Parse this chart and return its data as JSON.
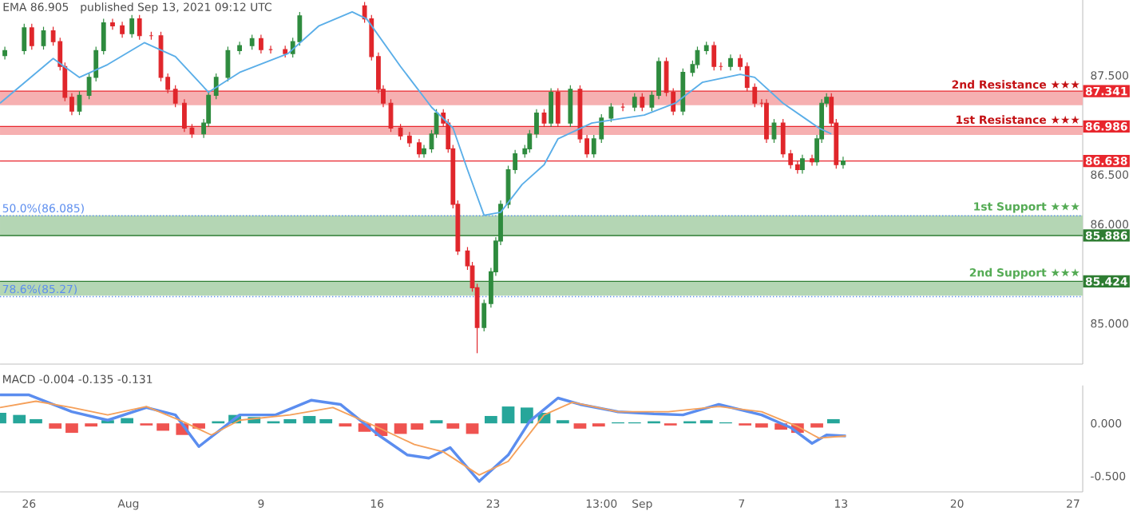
{
  "chart_data": [
    {
      "type": "candlestick",
      "annotations": [
        "EMA 86.905",
        "published Sep 13, 2021 09:12 UTC"
      ],
      "x": [
        "2021-07-24T13:00",
        "2021-07-25T17:00",
        "2021-07-26T04:00",
        "2021-07-26T21:00",
        "2021-07-27T11:00",
        "2021-07-27T21:00",
        "2021-07-28T04:00",
        "2021-07-28T14:00",
        "2021-07-29T01:00",
        "2021-07-29T15:00",
        "2021-07-30T01:00",
        "2021-07-30T12:00",
        "2021-07-31T01:00",
        "2021-07-31T15:00",
        "2021-08-01T05:00",
        "2021-08-01T16:00",
        "2021-08-02T09:00",
        "2021-08-02T23:00",
        "2021-08-03T09:00",
        "2021-08-03T20:00",
        "2021-08-04T09:00",
        "2021-08-04T20:00",
        "2021-08-05T13:00",
        "2021-08-05T20:00",
        "2021-08-06T07:00",
        "2021-08-07T00:00",
        "2021-08-07T17:00",
        "2021-08-08T11:00",
        "2021-08-09T00:00",
        "2021-08-09T14:00",
        "2021-08-10T11:00",
        "2021-08-10T22:00",
        "2021-08-11T08:00",
        "2021-08-15T06:00",
        "2021-08-15T16:00",
        "2021-08-16T02:00",
        "2021-08-16T09:00",
        "2021-08-16T20:00",
        "2021-08-17T10:00",
        "2021-08-17T23:00",
        "2021-08-18T13:00",
        "2021-08-18T20:00",
        "2021-08-19T07:00",
        "2021-08-19T14:00",
        "2021-08-20T00:00",
        "2021-08-20T07:00",
        "2021-08-20T14:00",
        "2021-08-20T21:00",
        "2021-08-21T11:00",
        "2021-08-21T18:00",
        "2021-08-22T01:00",
        "2021-08-22T11:00",
        "2021-08-22T21:00",
        "2021-08-23T04:00",
        "2021-08-23T11:00",
        "2021-08-23T22:00",
        "2021-08-24T08:00",
        "2021-08-24T22:00",
        "2021-08-25T05:00",
        "2021-08-25T15:00",
        "2021-08-26T02:00",
        "2021-08-26T12:00",
        "2021-08-26T22:00",
        "2021-08-27T16:00",
        "2021-08-28T06:00",
        "2021-08-28T16:00",
        "2021-08-29T02:00",
        "2021-08-29T13:00",
        "2021-08-30T03:00",
        "2021-08-30T20:00",
        "2021-08-31T13:00",
        "2021-09-01T00:00",
        "2021-09-01T14:00",
        "2021-09-02T00:00",
        "2021-09-02T11:00",
        "2021-09-02T21:00",
        "2021-09-03T11:00",
        "2021-09-04T01:00",
        "2021-09-04T08:00",
        "2021-09-04T21:00",
        "2021-09-05T08:00",
        "2021-09-05T18:00",
        "2021-09-06T08:00",
        "2021-09-06T22:00",
        "2021-09-07T08:00",
        "2021-09-07T19:00",
        "2021-09-08T05:00",
        "2021-09-08T12:00",
        "2021-09-08T23:00",
        "2021-09-09T12:00",
        "2021-09-09T23:00",
        "2021-09-10T09:00",
        "2021-09-10T16:00",
        "2021-09-11T06:00",
        "2021-09-11T13:00",
        "2021-09-11T20:00",
        "2021-09-12T03:00",
        "2021-09-12T10:00",
        "2021-09-12T17:00",
        "2021-09-13T03:00"
      ],
      "ohlc": [
        [
          87.7,
          87.79,
          87.66,
          87.75
        ],
        [
          87.75,
          88.02,
          87.71,
          87.98
        ],
        [
          87.98,
          88.02,
          87.76,
          87.8
        ],
        [
          87.8,
          87.99,
          87.76,
          87.95
        ],
        [
          87.95,
          87.99,
          87.8,
          87.84
        ],
        [
          87.84,
          87.88,
          87.55,
          87.59
        ],
        [
          87.59,
          87.63,
          87.24,
          87.28
        ],
        [
          87.28,
          87.32,
          87.1,
          87.14
        ],
        [
          87.14,
          87.34,
          87.1,
          87.3
        ],
        [
          87.3,
          87.52,
          87.26,
          87.48
        ],
        [
          87.48,
          87.79,
          87.44,
          87.75
        ],
        [
          87.75,
          88.07,
          87.71,
          88.03
        ],
        [
          88.03,
          88.07,
          87.96,
          88.0
        ],
        [
          88.0,
          88.04,
          87.88,
          87.92
        ],
        [
          87.92,
          88.11,
          87.88,
          88.07
        ],
        [
          88.07,
          88.11,
          87.86,
          87.9
        ],
        [
          87.9,
          87.94,
          87.86,
          87.9
        ],
        [
          87.9,
          87.94,
          87.44,
          87.48
        ],
        [
          87.48,
          87.52,
          87.32,
          87.36
        ],
        [
          87.36,
          87.4,
          87.18,
          87.22
        ],
        [
          87.22,
          87.26,
          86.93,
          86.97
        ],
        [
          86.97,
          87.01,
          86.87,
          86.91
        ],
        [
          86.91,
          87.06,
          86.87,
          87.02
        ],
        [
          87.02,
          87.34,
          86.98,
          87.3
        ],
        [
          87.3,
          87.52,
          87.26,
          87.48
        ],
        [
          87.48,
          87.79,
          87.44,
          87.75
        ],
        [
          87.75,
          87.84,
          87.71,
          87.8
        ],
        [
          87.8,
          87.91,
          87.76,
          87.87
        ],
        [
          87.87,
          87.91,
          87.72,
          87.76
        ],
        [
          87.76,
          87.8,
          87.72,
          87.76
        ],
        [
          87.76,
          87.8,
          87.68,
          87.72
        ],
        [
          87.72,
          87.88,
          87.68,
          87.84
        ],
        [
          87.84,
          88.14,
          87.8,
          88.1
        ],
        [
          88.2,
          88.24,
          88.03,
          88.07
        ],
        [
          88.07,
          88.11,
          87.65,
          87.69
        ],
        [
          87.69,
          87.73,
          87.32,
          87.36
        ],
        [
          87.36,
          87.4,
          87.18,
          87.22
        ],
        [
          87.22,
          87.26,
          86.93,
          86.97
        ],
        [
          86.97,
          87.01,
          86.85,
          86.89
        ],
        [
          86.89,
          86.93,
          86.78,
          86.82
        ],
        [
          86.82,
          86.86,
          86.67,
          86.71
        ],
        [
          86.71,
          86.8,
          86.67,
          86.76
        ],
        [
          86.76,
          86.95,
          86.72,
          86.91
        ],
        [
          86.91,
          87.16,
          86.87,
          87.12
        ],
        [
          87.12,
          87.16,
          86.98,
          87.02
        ],
        [
          87.02,
          87.06,
          86.72,
          86.76
        ],
        [
          86.76,
          86.8,
          86.16,
          86.2
        ],
        [
          86.2,
          86.24,
          85.69,
          85.73
        ],
        [
          85.73,
          85.77,
          85.54,
          85.58
        ],
        [
          85.58,
          85.62,
          85.32,
          85.36
        ],
        [
          85.36,
          85.4,
          84.7,
          84.96
        ],
        [
          84.96,
          85.24,
          84.92,
          85.2
        ],
        [
          85.2,
          85.56,
          85.16,
          85.52
        ],
        [
          85.52,
          85.87,
          85.48,
          85.83
        ],
        [
          85.83,
          86.24,
          85.79,
          86.2
        ],
        [
          86.2,
          86.59,
          86.16,
          86.55
        ],
        [
          86.55,
          86.75,
          86.51,
          86.71
        ],
        [
          86.71,
          86.8,
          86.67,
          86.76
        ],
        [
          86.76,
          86.95,
          86.72,
          86.91
        ],
        [
          86.91,
          87.16,
          86.87,
          87.12
        ],
        [
          87.12,
          87.16,
          86.98,
          87.02
        ],
        [
          87.02,
          87.37,
          86.98,
          87.33
        ],
        [
          87.33,
          87.37,
          86.98,
          87.02
        ],
        [
          87.02,
          87.4,
          86.98,
          87.36
        ],
        [
          87.36,
          87.4,
          86.82,
          86.86
        ],
        [
          86.86,
          86.9,
          86.67,
          86.71
        ],
        [
          86.71,
          86.9,
          86.67,
          86.86
        ],
        [
          86.86,
          87.11,
          86.82,
          87.07
        ],
        [
          87.07,
          87.22,
          87.03,
          87.18
        ],
        [
          87.18,
          87.22,
          87.14,
          87.18
        ],
        [
          87.18,
          87.32,
          87.14,
          87.28
        ],
        [
          87.28,
          87.32,
          87.14,
          87.18
        ],
        [
          87.18,
          87.34,
          87.14,
          87.3
        ],
        [
          87.3,
          87.68,
          87.26,
          87.64
        ],
        [
          87.64,
          87.68,
          87.29,
          87.33
        ],
        [
          87.33,
          87.37,
          87.1,
          87.14
        ],
        [
          87.14,
          87.57,
          87.1,
          87.53
        ],
        [
          87.53,
          87.65,
          87.49,
          87.61
        ],
        [
          87.61,
          87.79,
          87.57,
          87.75
        ],
        [
          87.75,
          87.84,
          87.71,
          87.8
        ],
        [
          87.8,
          87.84,
          87.55,
          87.59
        ],
        [
          87.59,
          87.63,
          87.55,
          87.59
        ],
        [
          87.59,
          87.71,
          87.55,
          87.67
        ],
        [
          87.67,
          87.71,
          87.55,
          87.59
        ],
        [
          87.59,
          87.63,
          87.34,
          87.38
        ],
        [
          87.38,
          87.42,
          87.18,
          87.22
        ],
        [
          87.22,
          87.26,
          87.18,
          87.22
        ],
        [
          87.22,
          87.26,
          86.82,
          86.86
        ],
        [
          86.86,
          87.06,
          86.82,
          87.02
        ],
        [
          87.02,
          87.06,
          86.67,
          86.71
        ],
        [
          86.71,
          86.75,
          86.56,
          86.6
        ],
        [
          86.6,
          86.64,
          86.51,
          86.55
        ],
        [
          86.55,
          86.7,
          86.51,
          86.66
        ],
        [
          86.66,
          86.7,
          86.59,
          86.63
        ],
        [
          86.63,
          86.9,
          86.59,
          86.86
        ],
        [
          86.86,
          87.26,
          86.82,
          87.22
        ],
        [
          87.22,
          87.32,
          87.18,
          87.28
        ],
        [
          87.28,
          87.32,
          86.98,
          87.02
        ],
        [
          87.02,
          87.06,
          86.56,
          86.6
        ],
        [
          86.6,
          86.68,
          86.56,
          86.638
        ]
      ],
      "colors": [
        "#2e8b3e",
        "#2e8b3e",
        "#e0262b",
        "#2e8b3e",
        "#e0262b",
        "#e0262b",
        "#e0262b",
        "#e0262b",
        "#2e8b3e",
        "#2e8b3e",
        "#2e8b3e",
        "#2e8b3e",
        "#e0262b",
        "#e0262b",
        "#2e8b3e",
        "#e0262b",
        "#e0262b",
        "#e0262b",
        "#e0262b",
        "#e0262b",
        "#e0262b",
        "#e0262b",
        "#2e8b3e",
        "#2e8b3e",
        "#2e8b3e",
        "#2e8b3e",
        "#2e8b3e",
        "#2e8b3e",
        "#e0262b",
        "#e0262b",
        "#e0262b",
        "#2e8b3e",
        "#2e8b3e",
        "#e0262b",
        "#e0262b",
        "#e0262b",
        "#e0262b",
        "#e0262b",
        "#e0262b",
        "#e0262b",
        "#e0262b",
        "#2e8b3e",
        "#2e8b3e",
        "#2e8b3e",
        "#e0262b",
        "#e0262b",
        "#e0262b",
        "#e0262b",
        "#e0262b",
        "#e0262b",
        "#e0262b",
        "#2e8b3e",
        "#2e8b3e",
        "#2e8b3e",
        "#2e8b3e",
        "#2e8b3e",
        "#2e8b3e",
        "#2e8b3e",
        "#2e8b3e",
        "#2e8b3e",
        "#e0262b",
        "#2e8b3e",
        "#e0262b",
        "#2e8b3e",
        "#e0262b",
        "#e0262b",
        "#2e8b3e",
        "#2e8b3e",
        "#2e8b3e",
        "#e0262b",
        "#2e8b3e",
        "#e0262b",
        "#2e8b3e",
        "#2e8b3e",
        "#e0262b",
        "#e0262b",
        "#2e8b3e",
        "#2e8b3e",
        "#2e8b3e",
        "#2e8b3e",
        "#e0262b",
        "#e0262b",
        "#2e8b3e",
        "#e0262b",
        "#e0262b",
        "#e0262b",
        "#e0262b",
        "#e0262b",
        "#2e8b3e",
        "#e0262b",
        "#e0262b",
        "#e0262b",
        "#2e8b3e",
        "#e0262b",
        "#2e8b3e",
        "#2e8b3e",
        "#2e8b3e",
        "#e0262b",
        "#e0262b",
        "#2e8b3e"
      ],
      "series": [
        {
          "type": "line",
          "color": "#5aaee8",
          "x": [
            "2021-07-24T06:00",
            "2021-07-27T11:00",
            "2021-07-29T01:00",
            "2021-07-30T18:00",
            "2021-08-01T23:00",
            "2021-08-03T20:00",
            "2021-08-05T20:00",
            "2021-08-07T17:00",
            "2021-08-10T15:00",
            "2021-08-12T12:00",
            "2021-08-14T12:00",
            "2021-08-15T09:00",
            "2021-08-17T10:00",
            "2021-08-19T07:00",
            "2021-08-20T14:00",
            "2021-08-21T11:00",
            "2021-08-22T11:00",
            "2021-08-23T11:00",
            "2021-08-24T18:00",
            "2021-08-26T02:00",
            "2021-08-26T22:00",
            "2021-08-28T23:00",
            "2021-09-01T03:00",
            "2021-09-03T00:00",
            "2021-09-04T15:00",
            "2021-09-06T22:00",
            "2021-09-07T19:00",
            "2021-09-09T12:00",
            "2021-09-11T16:00",
            "2021-09-12T10:00"
          ],
          "values": [
            87.22,
            87.67,
            87.48,
            87.61,
            87.83,
            87.69,
            87.33,
            87.53,
            87.72,
            88.0,
            88.14,
            88.07,
            87.59,
            87.18,
            86.97,
            86.55,
            86.09,
            86.12,
            86.4,
            86.6,
            86.86,
            87.02,
            87.1,
            87.22,
            87.43,
            87.51,
            87.48,
            87.22,
            86.97,
            86.91
          ]
        }
      ],
      "xlim": [
        "2021-07-24T06:00",
        "2021-09-27T14:00"
      ],
      "ylim": [
        84.59,
        88.26
      ],
      "yticks": [
        {
          "value": 85,
          "label": "85.000"
        },
        {
          "value": 86,
          "label": "86.000"
        },
        {
          "value": 86.5,
          "label": "86.500"
        },
        {
          "value": 87.5,
          "label": "87.500"
        }
      ],
      "tick_labels": "y",
      "bands": [
        {
          "axis": "y",
          "from": 87.2,
          "to": 87.341,
          "label": "2nd Resistance ★★★",
          "color": "#f6b0b1"
        },
        {
          "axis": "y",
          "from": 86.9,
          "to": 86.986,
          "label": "1st Resistance ★★★",
          "color": "#f6b0b1"
        },
        {
          "axis": "y",
          "from": 85.886,
          "to": 86.09,
          "label": "1st Support ★★★",
          "color": "#b4d6b4"
        },
        {
          "axis": "y",
          "from": 85.28,
          "to": 85.424,
          "label": "2nd Support ★★★",
          "color": "#b4d6b4"
        }
      ],
      "ref_lines": [
        {
          "axis": "y",
          "value": 87.341,
          "label": "87.341",
          "color": "#e8262d"
        },
        {
          "axis": "y",
          "value": 86.986,
          "label": "86.986",
          "color": "#e8262d"
        },
        {
          "axis": "y",
          "value": 86.638,
          "label": "86.638",
          "color": "#e8262d"
        },
        {
          "axis": "y",
          "value": 85.886,
          "label": "85.886",
          "color": "#2e7d32"
        },
        {
          "axis": "y",
          "value": 85.424,
          "label": "85.424",
          "color": "#2e7d32"
        },
        {
          "axis": "y",
          "value": 86.085,
          "label": "50.0%(86.085)",
          "color": "#5b8def",
          "line_style": "dotted"
        },
        {
          "axis": "y",
          "value": 85.27,
          "label": "78.6%(85.27)",
          "color": "#5b8def",
          "line_style": "dotted"
        }
      ]
    },
    {
      "type": "bar",
      "title": "MACD -0.004 -0.135 -0.131",
      "series": [
        {
          "type": "bar",
          "x": [
            "2021-07-24T06:00",
            "2021-07-25T10:00",
            "2021-07-26T10:00",
            "2021-07-27T14:00",
            "2021-07-28T14:00",
            "2021-07-29T18:00",
            "2021-07-30T18:00",
            "2021-07-31T22:00",
            "2021-08-02T02:00",
            "2021-08-03T02:00",
            "2021-08-04T06:00",
            "2021-08-05T06:00",
            "2021-08-06T10:00",
            "2021-08-07T10:00",
            "2021-08-08T14:00",
            "2021-08-09T18:00",
            "2021-08-10T18:00",
            "2021-08-11T22:00",
            "2021-08-12T22:00",
            "2021-08-14T02:00",
            "2021-08-15T06:00",
            "2021-08-16T06:00",
            "2021-08-17T10:00",
            "2021-08-18T10:00",
            "2021-08-19T14:00",
            "2021-08-20T14:00",
            "2021-08-21T18:00",
            "2021-08-22T21:00",
            "2021-08-23T22:00",
            "2021-08-25T01:00",
            "2021-08-26T02:00",
            "2021-08-27T05:00",
            "2021-08-28T06:00",
            "2021-08-29T09:00",
            "2021-08-30T13:00",
            "2021-08-31T13:00",
            "2021-09-01T17:00",
            "2021-09-02T17:00",
            "2021-09-03T21:00",
            "2021-09-04T21:00",
            "2021-09-06T01:00",
            "2021-09-07T05:00",
            "2021-09-08T05:00",
            "2021-09-09T09:00",
            "2021-09-10T09:00",
            "2021-09-11T13:00",
            "2021-09-12T13:00"
          ],
          "values": [
            0.1,
            0.08,
            0.04,
            -0.05,
            -0.09,
            -0.03,
            0.03,
            0.05,
            -0.02,
            -0.07,
            -0.11,
            -0.05,
            0.02,
            0.08,
            0.06,
            0.02,
            0.04,
            0.07,
            0.04,
            -0.03,
            -0.08,
            -0.12,
            -0.1,
            -0.06,
            0.03,
            -0.05,
            -0.1,
            0.07,
            0.16,
            0.15,
            0.1,
            0.03,
            -0.05,
            -0.03,
            0.01,
            0.01,
            0.02,
            -0.02,
            0.02,
            0.03,
            0.01,
            -0.02,
            -0.04,
            -0.06,
            -0.09,
            -0.04,
            0.04
          ],
          "colors": [
            "#26a69a",
            "#26a69a",
            "#26a69a",
            "#ef5350",
            "#ef5350",
            "#ef5350",
            "#26a69a",
            "#26a69a",
            "#ef5350",
            "#ef5350",
            "#ef5350",
            "#ef5350",
            "#26a69a",
            "#26a69a",
            "#26a69a",
            "#26a69a",
            "#26a69a",
            "#26a69a",
            "#26a69a",
            "#ef5350",
            "#ef5350",
            "#ef5350",
            "#ef5350",
            "#ef5350",
            "#26a69a",
            "#ef5350",
            "#ef5350",
            "#26a69a",
            "#26a69a",
            "#26a69a",
            "#26a69a",
            "#26a69a",
            "#ef5350",
            "#ef5350",
            "#26a69a",
            "#26a69a",
            "#26a69a",
            "#ef5350",
            "#26a69a",
            "#26a69a",
            "#26a69a",
            "#ef5350",
            "#ef5350",
            "#ef5350",
            "#ef5350",
            "#ef5350",
            "#26a69a"
          ]
        },
        {
          "type": "line",
          "color": "#5b8def",
          "x": [
            "2021-07-24T06:00",
            "2021-07-26T00:00",
            "2021-07-28T14:00",
            "2021-07-30T18:00",
            "2021-08-02T02:00",
            "2021-08-03T20:00",
            "2021-08-05T06:00",
            "2021-08-07T17:00",
            "2021-08-09T21:00",
            "2021-08-12T01:00",
            "2021-08-13T19:00",
            "2021-08-16T02:00",
            "2021-08-17T20:00",
            "2021-08-19T03:00",
            "2021-08-20T10:00",
            "2021-08-22T04:00",
            "2021-08-23T22:00",
            "2021-08-25T05:00",
            "2021-08-26T22:00",
            "2021-08-28T06:00",
            "2021-08-30T13:00",
            "2021-09-01T17:00",
            "2021-09-03T11:00",
            "2021-09-05T15:00",
            "2021-09-08T05:00",
            "2021-09-09T23:00",
            "2021-09-11T06:00",
            "2021-09-12T03:00",
            "2021-09-13T07:00"
          ],
          "values": [
            0.27,
            0.27,
            0.11,
            0.03,
            0.15,
            0.08,
            -0.22,
            0.08,
            0.08,
            0.22,
            0.18,
            -0.11,
            -0.3,
            -0.33,
            -0.23,
            -0.55,
            -0.3,
            0.02,
            0.24,
            0.18,
            0.11,
            0.09,
            0.08,
            0.18,
            0.08,
            -0.04,
            -0.19,
            -0.11,
            -0.12
          ]
        },
        {
          "type": "line",
          "color": "#f5a05a",
          "x": [
            "2021-07-24T06:00",
            "2021-07-26T10:00",
            "2021-07-28T14:00",
            "2021-07-30T18:00",
            "2021-08-02T02:00",
            "2021-08-04T06:00",
            "2021-08-06T00:00",
            "2021-08-07T17:00",
            "2021-08-10T18:00",
            "2021-08-13T08:00",
            "2021-08-16T02:00",
            "2021-08-18T06:00",
            "2021-08-20T00:00",
            "2021-08-22T04:00",
            "2021-08-23T22:00",
            "2021-08-26T02:00",
            "2021-08-27T19:00",
            "2021-08-30T13:00",
            "2021-09-02T14:00",
            "2021-09-05T15:00",
            "2021-09-08T05:00",
            "2021-09-10T09:00",
            "2021-09-11T16:00",
            "2021-09-13T07:00"
          ],
          "values": [
            0.15,
            0.21,
            0.15,
            0.08,
            0.16,
            0.02,
            -0.11,
            0.03,
            0.08,
            0.15,
            -0.04,
            -0.2,
            -0.27,
            -0.49,
            -0.36,
            0.08,
            0.2,
            0.11,
            0.11,
            0.16,
            0.11,
            -0.03,
            -0.14,
            -0.12
          ]
        }
      ],
      "xlim": [
        "2021-07-24T06:00",
        "2021-09-27T14:00"
      ],
      "xticks": [
        {
          "value": "2021-07-26",
          "label": "26"
        },
        {
          "value": "2021-08-01",
          "label": "Aug"
        },
        {
          "value": "2021-08-09",
          "label": "9"
        },
        {
          "value": "2021-08-16",
          "label": "16"
        },
        {
          "value": "2021-08-23",
          "label": "23"
        },
        {
          "value": "2021-08-29T13:00",
          "label": "13:00"
        },
        {
          "value": "2021-09-01",
          "label": "Sep"
        },
        {
          "value": "2021-09-07",
          "label": "7"
        },
        {
          "value": "2021-09-13",
          "label": "13"
        },
        {
          "value": "2021-09-20",
          "label": "20"
        },
        {
          "value": "2021-09-27",
          "label": "27"
        }
      ],
      "ylim": [
        -0.65,
        0.36
      ],
      "yticks": [
        {
          "value": 0,
          "label": "0.000"
        },
        {
          "value": -0.5,
          "label": "-0.500"
        }
      ]
    }
  ]
}
